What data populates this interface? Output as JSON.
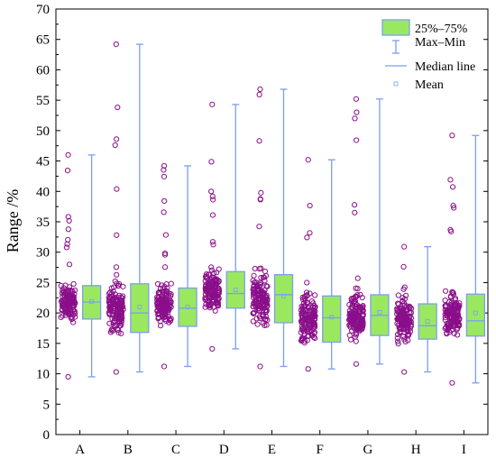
{
  "chart_data": {
    "type": "boxplot",
    "ylabel": "Range /%",
    "xlabel": "",
    "ylim": [
      0,
      70
    ],
    "yticks": [
      0,
      5,
      10,
      15,
      20,
      25,
      30,
      35,
      40,
      45,
      50,
      55,
      60,
      65,
      70
    ],
    "categories": [
      "A",
      "B",
      "C",
      "D",
      "E",
      "F",
      "G",
      "H",
      "I"
    ],
    "boxes": [
      {
        "category": "A",
        "min": 9.5,
        "q1": 19.0,
        "median": 21.8,
        "q3": 24.5,
        "max": 46.0,
        "mean": 21.9
      },
      {
        "category": "B",
        "min": 10.3,
        "q1": 16.8,
        "median": 20.0,
        "q3": 24.8,
        "max": 64.2,
        "mean": 21.0
      },
      {
        "category": "C",
        "min": 11.2,
        "q1": 17.8,
        "median": 20.8,
        "q3": 24.1,
        "max": 44.2,
        "mean": 21.0
      },
      {
        "category": "D",
        "min": 14.1,
        "q1": 20.8,
        "median": 23.2,
        "q3": 26.8,
        "max": 54.3,
        "mean": 23.8
      },
      {
        "category": "E",
        "min": 11.2,
        "q1": 18.4,
        "median": 23.0,
        "q3": 26.3,
        "max": 56.8,
        "mean": 22.8
      },
      {
        "category": "F",
        "min": 10.8,
        "q1": 15.2,
        "median": 19.2,
        "q3": 22.8,
        "max": 45.2,
        "mean": 19.3
      },
      {
        "category": "G",
        "min": 11.6,
        "q1": 16.3,
        "median": 19.6,
        "q3": 23.0,
        "max": 55.2,
        "mean": 20.1
      },
      {
        "category": "H",
        "min": 10.3,
        "q1": 15.7,
        "median": 17.9,
        "q3": 21.5,
        "max": 30.9,
        "mean": 18.6
      },
      {
        "category": "I",
        "min": 8.5,
        "q1": 16.2,
        "median": 18.7,
        "q3": 23.1,
        "max": 49.2,
        "mean": 20.0
      }
    ],
    "legend": {
      "placement": "top-right",
      "items": [
        "25%–75%",
        "Max–Min",
        "Median line",
        "Mean"
      ]
    },
    "grid": false,
    "colors": {
      "box_fill": "#9ae860",
      "box_stroke": "#7b9ef2",
      "whisker": "#7b9ef2",
      "points": "#8a0f8a",
      "axis": "#000000"
    }
  }
}
